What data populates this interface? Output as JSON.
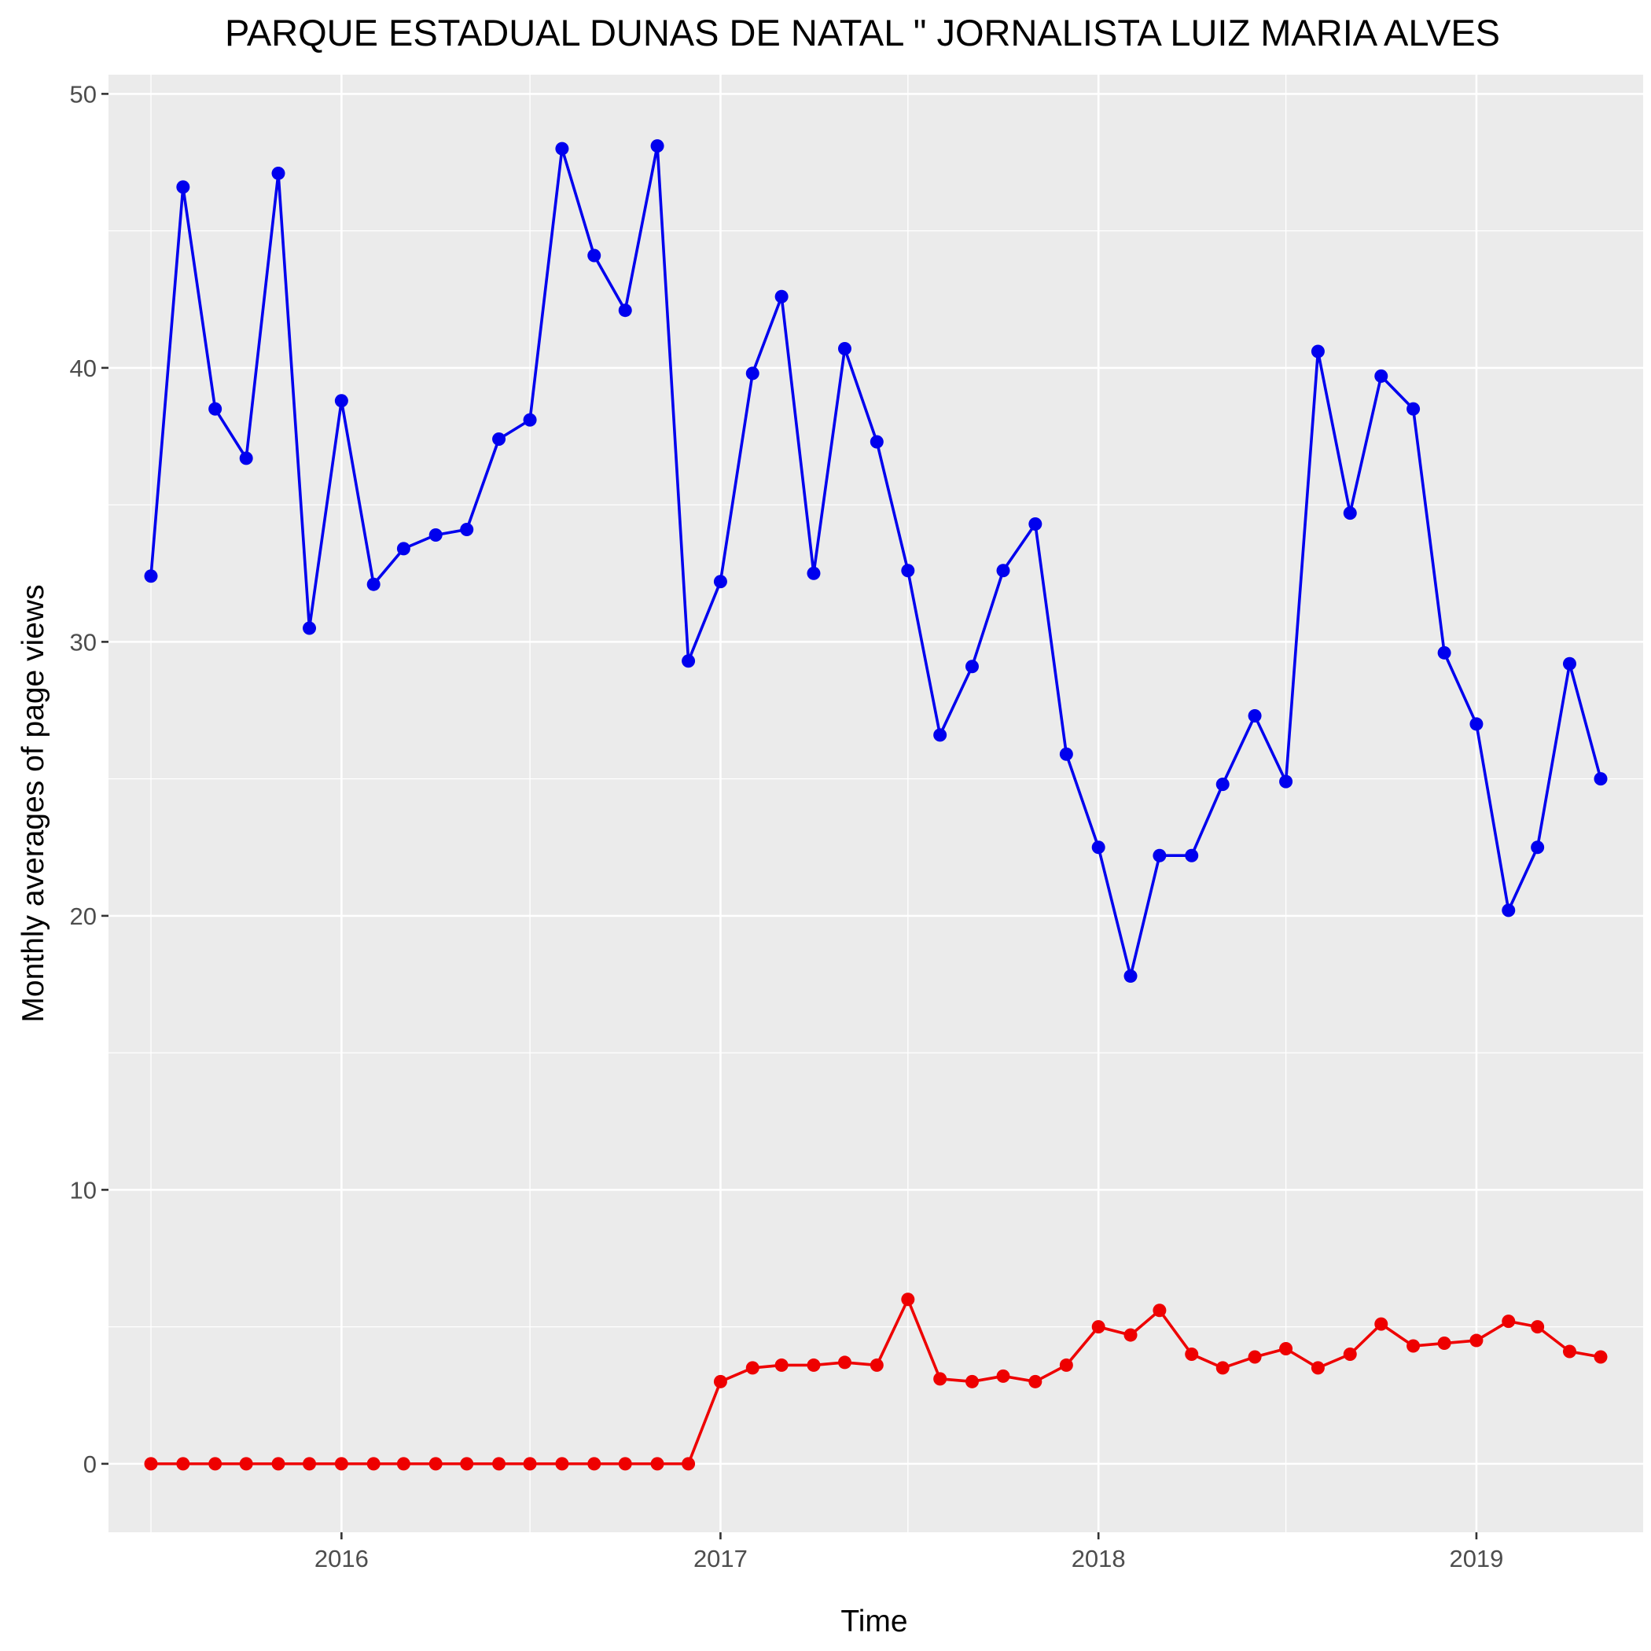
{
  "chart_data": {
    "type": "line",
    "title": "PARQUE ESTADUAL DUNAS DE NATAL \" JORNALISTA LUIZ MARIA ALVES",
    "xlabel": "Time",
    "ylabel": "Monthly averages of page views",
    "x_tick_labels": [
      "2016",
      "2017",
      "2018",
      "2019"
    ],
    "y_tick_labels": [
      "0",
      "10",
      "20",
      "30",
      "40",
      "50"
    ],
    "ylim": [
      -2.5,
      50.7
    ],
    "xlim": [
      "2015-05-21",
      "2019-06-11"
    ],
    "grid": true,
    "legend": "none",
    "x": [
      "2015-07-01",
      "2015-08-01",
      "2015-09-01",
      "2015-10-01",
      "2015-11-01",
      "2015-12-01",
      "2016-01-01",
      "2016-02-01",
      "2016-03-01",
      "2016-04-01",
      "2016-05-01",
      "2016-06-01",
      "2016-07-01",
      "2016-08-01",
      "2016-09-01",
      "2016-10-01",
      "2016-11-01",
      "2016-12-01",
      "2017-01-01",
      "2017-02-01",
      "2017-03-01",
      "2017-04-01",
      "2017-05-01",
      "2017-06-01",
      "2017-07-01",
      "2017-08-01",
      "2017-09-01",
      "2017-10-01",
      "2017-11-01",
      "2017-12-01",
      "2018-01-01",
      "2018-02-01",
      "2018-03-01",
      "2018-04-01",
      "2018-05-01",
      "2018-06-01",
      "2018-07-01",
      "2018-08-01",
      "2018-09-01",
      "2018-10-01",
      "2018-11-01",
      "2018-12-01",
      "2019-01-01",
      "2019-02-01",
      "2019-03-01",
      "2019-04-01",
      "2019-05-01"
    ],
    "series": [
      {
        "color": "#0000ee",
        "values": [
          32.4,
          46.6,
          38.5,
          36.7,
          47.1,
          30.5,
          38.8,
          32.1,
          33.4,
          33.9,
          34.1,
          37.4,
          38.1,
          48.0,
          44.1,
          42.1,
          48.1,
          29.3,
          32.2,
          39.8,
          42.6,
          32.5,
          40.7,
          37.3,
          32.6,
          26.6,
          29.1,
          32.6,
          34.3,
          25.9,
          22.5,
          17.8,
          22.2,
          22.2,
          24.8,
          27.3,
          24.9,
          40.6,
          34.7,
          39.7,
          38.5,
          29.6,
          27.0,
          20.2,
          22.5,
          29.2,
          25.0
        ]
      },
      {
        "color": "#ee0000",
        "values": [
          0,
          0,
          0,
          0,
          0,
          0,
          0,
          0,
          0,
          0,
          0,
          0,
          0,
          0,
          0,
          0,
          0,
          0,
          3.0,
          3.5,
          3.6,
          3.6,
          3.7,
          3.6,
          6.0,
          3.1,
          3.0,
          3.2,
          3.0,
          3.6,
          5.0,
          4.7,
          5.6,
          4.0,
          3.5,
          3.9,
          4.2,
          3.5,
          4.0,
          5.1,
          4.3,
          4.4,
          4.5,
          5.2,
          5.0,
          4.1,
          3.9
        ]
      }
    ]
  }
}
